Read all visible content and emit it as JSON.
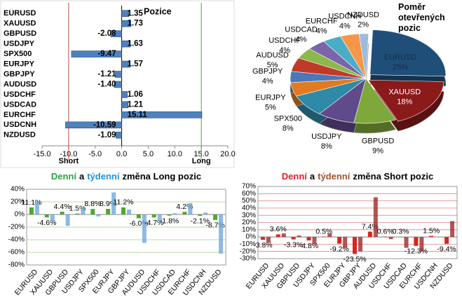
{
  "chart_data": [
    {
      "type": "bar",
      "orientation": "horizontal",
      "title": "Pozice",
      "categories": [
        "EURUSD",
        "XAUUSD",
        "GBPUSD",
        "USDJPY",
        "SPX500",
        "EURJPY",
        "GBPJPY",
        "AUDUSD",
        "USDCHF",
        "USDCAD",
        "EURCHF",
        "USDCNH",
        "NZDUSD"
      ],
      "values": [
        1.35,
        1.73,
        -2.08,
        1.63,
        -9.47,
        1.57,
        -1.21,
        -1.4,
        1.06,
        1.21,
        15.11,
        -10.59,
        -1.09
      ],
      "value_labels": [
        "1.35",
        "1.73",
        "-2.08",
        "1.63",
        "-9.47",
        "1.57",
        "-1.21",
        "-1.40",
        "1.06",
        "1.21",
        "15.11",
        "-10.59",
        "-1.09"
      ],
      "color": "#4f81bd",
      "xlim": [
        -15,
        20
      ],
      "xticks": [
        {
          "value": -15,
          "label": "-15.0"
        },
        {
          "value": -10,
          "label": "-10.0"
        },
        {
          "value": -5,
          "label": "-5.0"
        },
        {
          "value": 0,
          "label": "0.0"
        },
        {
          "value": 5,
          "label": "5.0"
        },
        {
          "value": 10,
          "label": "10.0"
        },
        {
          "value": 15,
          "label": "15.0"
        },
        {
          "value": 20,
          "label": "20.0"
        }
      ],
      "annotations": [
        {
          "text": "Short",
          "x": -10,
          "color": "#c0504d"
        },
        {
          "text": "Long",
          "x": 15,
          "color": "#4ea72e"
        }
      ]
    },
    {
      "type": "pie",
      "title": "Poměr otevřených pozic",
      "categories": [
        "EURUSD",
        "XAUUSD",
        "GBPUSD",
        "USDJPY",
        "SPX500",
        "EURJPY",
        "GBPJPY",
        "AUDUSD",
        "USDCHF",
        "USDCAD",
        "EURCHF",
        "USDCNH",
        "NZDUSD"
      ],
      "values": [
        25,
        18,
        9,
        8,
        8,
        5,
        4,
        5,
        4,
        4,
        4,
        4,
        2
      ],
      "value_labels": [
        "25%",
        "18%",
        "9%",
        "8%",
        "8%",
        "5%",
        "4%",
        "5%",
        "4%",
        "4%",
        "4%",
        "4%",
        "2%"
      ],
      "colors": [
        "#1f4e79",
        "#8b1a1a",
        "#7fa83a",
        "#5f4a8b",
        "#2e8aa6",
        "#e07b22",
        "#4a78b8",
        "#c0392b",
        "#8db84a",
        "#7b64a8",
        "#4bacc6",
        "#f79646",
        "#9bbbe0"
      ]
    },
    {
      "type": "bar",
      "orientation": "vertical",
      "title": [
        {
          "text": "Denní",
          "color": "#2ea043"
        },
        {
          "text": "a"
        },
        {
          "text": "týdenní",
          "color": "#1f8fe0"
        },
        {
          "text": "změna Long pozic"
        }
      ],
      "categories": [
        "EURUSD",
        "XAUUSD",
        "GBPUSD",
        "USDJPY",
        "SPX500",
        "EURJPY",
        "GBPJPY",
        "AUDUSD",
        "USDCHF",
        "USDCAD",
        "EURCHF",
        "USDCNH",
        "NZDUSD"
      ],
      "series": [
        {
          "color": "#4ea72e",
          "values": [
            11.1,
            -4.6,
            4.4,
            1.5,
            8.8,
            8.9,
            11.2,
            -6.0,
            -4.7,
            -1.8,
            4.2,
            -2.1,
            -8.7
          ],
          "value_labels": [
            "11.1%",
            "-4.6%",
            "4.4%",
            "1.5%",
            "8.8%",
            "8.9%",
            "11.2%",
            "-6.0%",
            "-4.7%",
            "-1.8%",
            "4.2%",
            "-2.1%",
            "-8.7%"
          ]
        },
        {
          "color": "#6fa8e0",
          "values": [
            20,
            -10,
            -18,
            10,
            -3,
            35,
            8,
            -45,
            -10,
            2,
            18,
            3,
            -62
          ]
        }
      ],
      "ylim": [
        -80,
        40
      ],
      "yticks": [
        {
          "value": -80,
          "label": "-80%"
        },
        {
          "value": -60,
          "label": "-60%"
        },
        {
          "value": -40,
          "label": "-40%"
        },
        {
          "value": -20,
          "label": "-20%"
        },
        {
          "value": 0,
          "label": "0%"
        },
        {
          "value": 20,
          "label": "20%"
        },
        {
          "value": 40,
          "label": "40%"
        }
      ],
      "grid_color": "#9fd27f"
    },
    {
      "type": "bar",
      "orientation": "vertical",
      "title": [
        {
          "text": "Denní",
          "color": "#e0202a"
        },
        {
          "text": "a"
        },
        {
          "text": "týdenní",
          "color": "#a0522d"
        },
        {
          "text": "změna Short pozic"
        }
      ],
      "categories": [
        "EURUSD",
        "XAUUSD",
        "GBPUSD",
        "USDJPY",
        "SPX500",
        "EURJPY",
        "GBPJPY",
        "AUDUSD",
        "USDCHF",
        "USDCAD",
        "EURCHF",
        "USDCNH",
        "NZDUSD"
      ],
      "series": [
        {
          "color": "#d9261c",
          "values": [
            -3.8,
            3.6,
            -3.3,
            -4.8,
            0.5,
            -9.2,
            -23.5,
            7.4,
            0.6,
            0.3,
            -12.3,
            1.5,
            -9.4
          ],
          "value_labels": [
            "-3.8%",
            "3.6%",
            "-3.3%",
            "-4.8%",
            "0.5%",
            "-9.2%",
            "-23.5%",
            "7.4%",
            "0.6%",
            "0.3%",
            "-12.3%",
            "1.5%",
            "-9.4%"
          ]
        },
        {
          "color": "#9e2a2a",
          "values": [
            -8,
            5,
            2,
            -10,
            5,
            -15,
            -20,
            55,
            -3,
            -15,
            -20,
            0,
            22
          ]
        }
      ],
      "ylim": [
        -30,
        70
      ],
      "yticks": [
        {
          "value": -30,
          "label": "-30%"
        },
        {
          "value": -20,
          "label": "-20%"
        },
        {
          "value": -10,
          "label": "-10%"
        },
        {
          "value": 0,
          "label": "0%"
        },
        {
          "value": 10,
          "label": "10%"
        },
        {
          "value": 20,
          "label": "20%"
        },
        {
          "value": 30,
          "label": "30%"
        },
        {
          "value": 40,
          "label": "40%"
        },
        {
          "value": 50,
          "label": "50%"
        },
        {
          "value": 60,
          "label": "60%"
        },
        {
          "value": 70,
          "label": "70%"
        }
      ],
      "grid_color": "#e08080"
    }
  ]
}
